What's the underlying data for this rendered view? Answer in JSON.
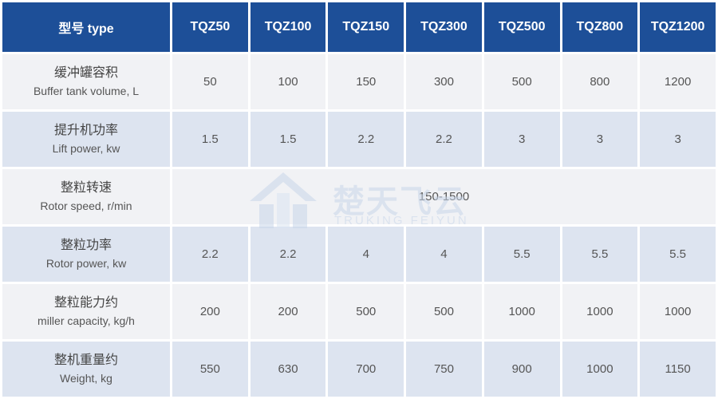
{
  "table": {
    "header": [
      "型号 type",
      "TQZ50",
      "TQZ100",
      "TQZ150",
      "TQZ300",
      "TQZ500",
      "TQZ800",
      "TQZ1200"
    ],
    "rows": [
      {
        "zh": "缓冲罐容积",
        "en": "Buffer tank volume, L",
        "values": [
          "50",
          "100",
          "150",
          "300",
          "500",
          "800",
          "1200"
        ]
      },
      {
        "zh": "提升机功率",
        "en": "Lift power, kw",
        "values": [
          "1.5",
          "1.5",
          "2.2",
          "2.2",
          "3",
          "3",
          "3"
        ]
      },
      {
        "zh": "整粒转速",
        "en": "Rotor speed, r/min",
        "merged_value": "150-1500"
      },
      {
        "zh": "整粒功率",
        "en": "Rotor power, kw",
        "values": [
          "2.2",
          "2.2",
          "4",
          "4",
          "5.5",
          "5.5",
          "5.5"
        ]
      },
      {
        "zh": "整粒能力约",
        "en": "miller capacity, kg/h",
        "values": [
          "200",
          "200",
          "500",
          "500",
          "1000",
          "1000",
          "1000"
        ]
      },
      {
        "zh": "整机重量约",
        "en": "Weight, kg",
        "values": [
          "550",
          "630",
          "700",
          "750",
          "900",
          "1000",
          "1150"
        ]
      }
    ]
  },
  "watermark": {
    "cn": "楚天飞云",
    "en": "TRUKING FEIYUN",
    "logo_icon": "truking-logo-icon"
  },
  "colors": {
    "header_bg": "#1d4f98",
    "row_light": "#f1f2f5",
    "row_dark": "#dde4f0"
  }
}
